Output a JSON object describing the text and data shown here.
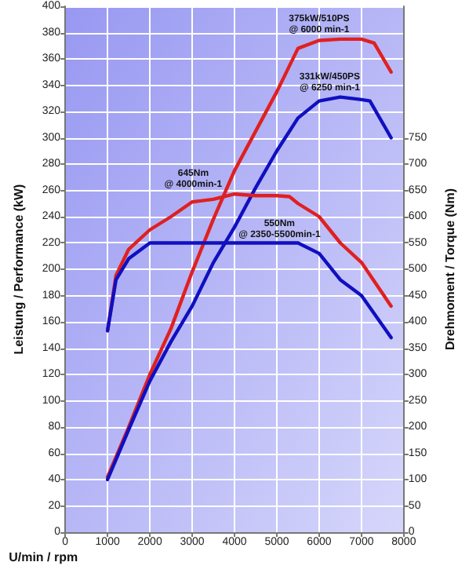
{
  "chart_data": {
    "type": "line",
    "xlabel": "U/min / rpm",
    "ylabel": "Leistung / Performance (kW)",
    "y2label": "Drehmoment / Torque (Nm)",
    "xlim": [
      0,
      8000
    ],
    "xticks": [
      0,
      1000,
      2000,
      3000,
      4000,
      5000,
      6000,
      7000,
      8000
    ],
    "ylim": [
      0,
      400
    ],
    "yticks": [
      0,
      20,
      40,
      60,
      80,
      100,
      120,
      140,
      160,
      180,
      200,
      220,
      240,
      260,
      280,
      300,
      320,
      340,
      360,
      380,
      400
    ],
    "y2lim": [
      0,
      1000
    ],
    "y2ticks": [
      0,
      50,
      100,
      150,
      200,
      250,
      300,
      350,
      400,
      450,
      500,
      550,
      600,
      650,
      700,
      750
    ],
    "grid": true,
    "marker": "none",
    "line_style": "solid",
    "series": [
      {
        "color": "#e02020",
        "x": [
          1000,
          1500,
          2000,
          2500,
          3000,
          3500,
          4000,
          4500,
          5000,
          5500,
          6000,
          6500,
          7000,
          7300,
          7700
        ],
        "values": [
          42,
          80,
          120,
          155,
          198,
          238,
          275,
          305,
          335,
          368,
          374,
          375,
          375,
          372,
          350
        ]
      },
      {
        "color": "#1010c0",
        "x": [
          1000,
          1500,
          2000,
          2500,
          3000,
          3500,
          4000,
          4500,
          5000,
          5500,
          6000,
          6500,
          7000,
          7200,
          7700
        ],
        "values": [
          40,
          78,
          115,
          145,
          172,
          205,
          232,
          262,
          290,
          315,
          328,
          331,
          329,
          328,
          300
        ]
      },
      {
        "color": "#e02020",
        "axis": "y2",
        "x": [
          1000,
          1200,
          1500,
          2000,
          2500,
          3000,
          3500,
          4000,
          4500,
          5000,
          5300,
          5500,
          6000,
          6500,
          7000,
          7700
        ],
        "values": [
          383,
          488,
          538,
          575,
          600,
          628,
          633,
          643,
          640,
          640,
          638,
          625,
          600,
          550,
          513,
          430
        ]
      },
      {
        "color": "#1010c0",
        "axis": "y2",
        "x": [
          1000,
          1200,
          1500,
          2000,
          2500,
          3000,
          4000,
          5000,
          5500,
          6000,
          6500,
          7000,
          7700
        ],
        "values": [
          383,
          480,
          520,
          550,
          550,
          550,
          550,
          550,
          550,
          530,
          480,
          450,
          370
        ]
      }
    ],
    "annotations": [
      {
        "text": "375kW/510PS\n@ 6000 min-1",
        "x": 6000,
        "y": 375
      },
      {
        "text": "331kW/450PS\n@ 6250 min-1",
        "x": 6250,
        "y": 331
      },
      "645Nm\n@ 4000min-1",
      "550Nm\n@ 2350-5500min-1"
    ]
  }
}
